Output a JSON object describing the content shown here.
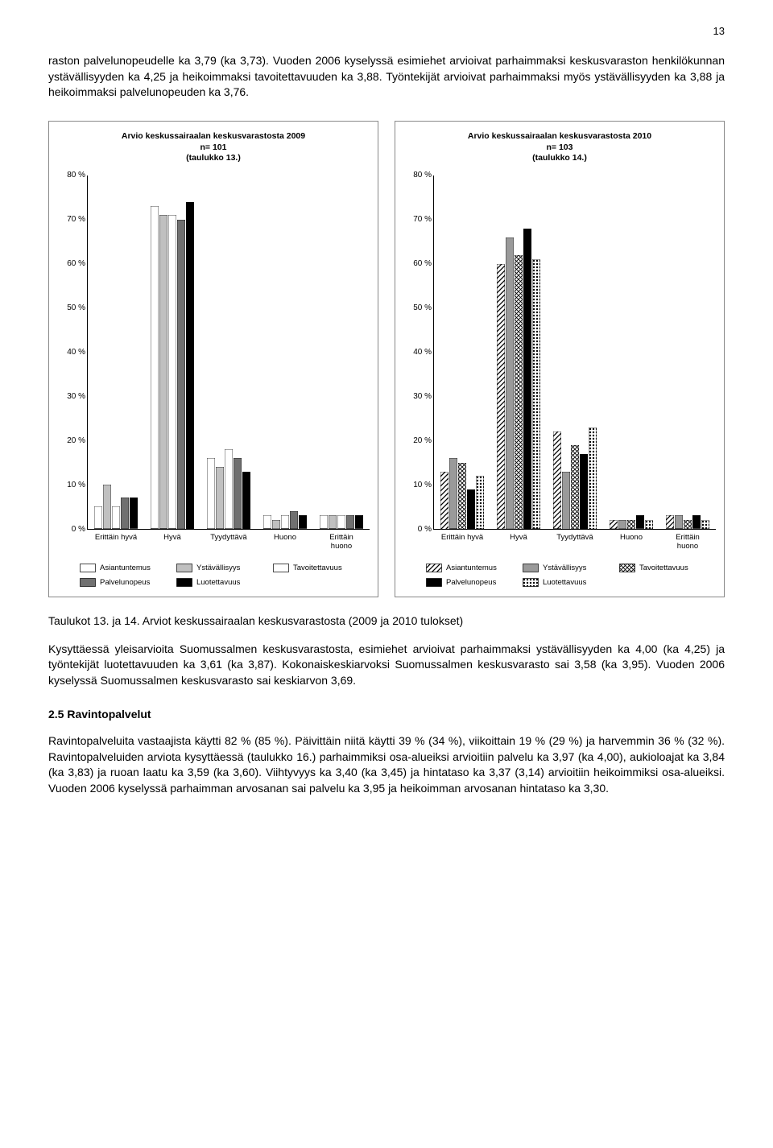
{
  "page_number": "13",
  "para1": "raston palvelunopeudelle ka 3,79 (ka 3,73). Vuoden 2006 kyselyssä esimiehet arvioivat parhaimmaksi keskusvaraston henkilökunnan ystävällisyyden ka 4,25 ja heikoimmaksi tavoitettavuuden ka 3,88. Työntekijät arvioivat parhaimmaksi myös ystävällisyyden ka 3,88 ja heikoimmaksi palvelunopeuden ka 3,76.",
  "chart1": {
    "title_line1": "Arvio keskussairaalan keskusvarastosta 2009",
    "title_line2": "n= 101",
    "title_line3": "(taulukko 13.)",
    "ymax": 80,
    "ytick_step": 10,
    "categories": [
      "Erittäin hyvä",
      "Hyvä",
      "Tyydyttävä",
      "Huono",
      "Erittäin\nhuono"
    ],
    "series": [
      {
        "name": "Asiantuntemus",
        "fill": "#ffffff",
        "pattern": "none",
        "values": [
          5,
          73,
          16,
          3,
          3
        ]
      },
      {
        "name": "Ystävällisyys",
        "fill": "#c0c0c0",
        "pattern": "none",
        "values": [
          10,
          71,
          14,
          2,
          3
        ]
      },
      {
        "name": "Tavoitettavuus",
        "fill": "#ffffff",
        "pattern": "none",
        "values": [
          5,
          71,
          18,
          3,
          3
        ]
      },
      {
        "name": "Palvelunopeus",
        "fill": "#707070",
        "pattern": "none",
        "values": [
          7,
          70,
          16,
          4,
          3
        ]
      },
      {
        "name": "Luotettavuus",
        "fill": "#000000",
        "pattern": "none",
        "values": [
          7,
          74,
          13,
          3,
          3
        ]
      }
    ]
  },
  "chart2": {
    "title_line1": "Arvio keskussairaalan keskusvarastosta 2010",
    "title_line2": "n= 103",
    "title_line3": "(taulukko 14.)",
    "ymax": 80,
    "ytick_step": 10,
    "categories": [
      "Erittäin hyvä",
      "Hyvä",
      "Tyydyttävä",
      "Huono",
      "Erittäin\nhuono"
    ],
    "series": [
      {
        "name": "Asiantuntemus",
        "fill": "diag",
        "pattern": "diag",
        "values": [
          13,
          60,
          22,
          2,
          3
        ]
      },
      {
        "name": "Ystävällisyys",
        "fill": "#9a9a9a",
        "pattern": "none",
        "values": [
          16,
          66,
          13,
          2,
          3
        ]
      },
      {
        "name": "Tavoitettavuus",
        "fill": "check",
        "pattern": "check",
        "values": [
          15,
          62,
          19,
          2,
          2
        ]
      },
      {
        "name": "Palvelunopeus",
        "fill": "#000000",
        "pattern": "none",
        "values": [
          9,
          68,
          17,
          3,
          3
        ]
      },
      {
        "name": "Luotettavuus",
        "fill": "dots",
        "pattern": "dots",
        "values": [
          12,
          61,
          23,
          2,
          2
        ]
      }
    ]
  },
  "caption": "Taulukot 13. ja 14. Arviot keskussairaalan keskusvarastosta (2009 ja 2010 tulokset)",
  "para2": "Kysyttäessä yleisarvioita Suomussalmen keskusvarastosta, esimiehet arvioivat parhaimmaksi ystävällisyyden ka 4,00 (ka 4,25) ja työntekijät luotettavuuden ka 3,61 (ka 3,87). Kokonaiskeskiarvoksi Suomussalmen keskusvarasto sai 3,58 (ka 3,95). Vuoden 2006 kyselyssä Suomussalmen keskusvarasto sai keskiarvon 3,69.",
  "section_head": "2.5 Ravintopalvelut",
  "para3": "Ravintopalveluita vastaajista käytti 82 % (85 %). Päivittäin niitä käytti 39 % (34 %), viikoittain 19 % (29 %) ja harvemmin 36 % (32 %). Ravintopalveluiden arviota kysyttäessä (taulukko 16.) parhaimmiksi osa-alueiksi arvioitiin palvelu ka 3,97 (ka 4,00), aukioloajat ka 3,84 (ka 3,83) ja ruoan laatu ka 3,59 (ka 3,60). Viihtyvyys ka 3,40 (ka 3,45) ja hintataso ka 3,37 (3,14) arvioitiin heikoimmiksi osa-alueiksi. Vuoden 2006 kyselyssä parhaimman arvosanan sai palvelu ka 3,95 ja heikoimman arvosanan hintataso ka 3,30."
}
